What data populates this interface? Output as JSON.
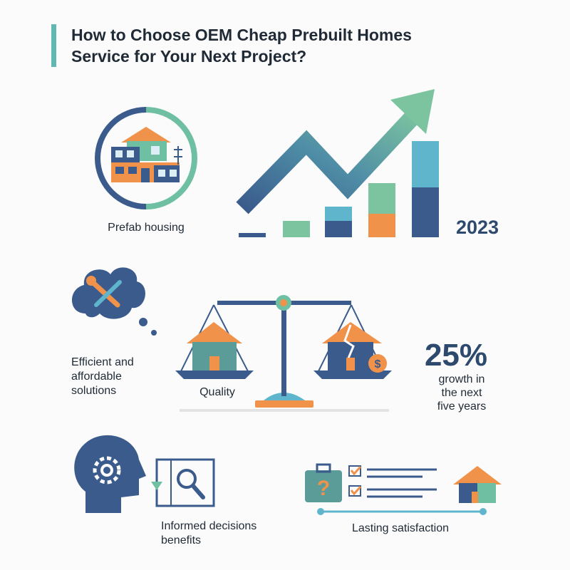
{
  "header": {
    "title_lines": [
      "How to Choose OEM Cheap Prebuilt Homes",
      "Service for Your Next Project?"
    ]
  },
  "sections": {
    "prefab": {
      "label": "Prefab housing",
      "year": "2023"
    },
    "efficient": {
      "lines": [
        "Efficient and",
        "affordable",
        "solutions"
      ]
    },
    "quality": {
      "label": "Quality"
    },
    "growth": {
      "headline": "25%",
      "lines": [
        "growth in",
        "the next",
        "five years"
      ]
    },
    "informed": {
      "lines": [
        "Informed decisions",
        "benefits"
      ]
    },
    "satisfaction": {
      "label": "Lasting satisfaction"
    }
  }
}
